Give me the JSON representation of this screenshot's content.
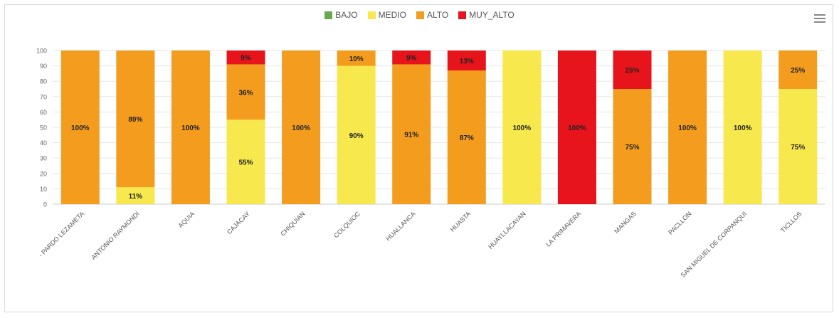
{
  "chart_data": {
    "type": "bar",
    "stacked": true,
    "categories": [
      "- PARDO LEZAMETA",
      "ANTONIO RAYMONDI",
      "AQUIA",
      "CAJACAY",
      "CHIQUIAN",
      "COLQUIOC",
      "HUALLANCA",
      "HUASTA",
      "HUAYLLACAYAN",
      "LA PRIMAVERA",
      "MANGAS",
      "PACLLON",
      "SAN MIGUEL DE CORPANQUI",
      "TICLLOS"
    ],
    "series": [
      {
        "name": "BAJO",
        "color": "#6aa84f",
        "values": [
          0,
          0,
          0,
          0,
          0,
          0,
          0,
          0,
          0,
          0,
          0,
          0,
          0,
          0
        ]
      },
      {
        "name": "MEDIO",
        "color": "#f7e84e",
        "values": [
          0,
          11,
          0,
          55,
          0,
          90,
          0,
          0,
          100,
          0,
          0,
          0,
          100,
          75
        ]
      },
      {
        "name": "ALTO",
        "color": "#f39c1e",
        "values": [
          100,
          89,
          100,
          36,
          100,
          10,
          91,
          87,
          0,
          0,
          75,
          100,
          0,
          25
        ]
      },
      {
        "name": "MUY_ALTO",
        "color": "#e8141b",
        "values": [
          0,
          0,
          0,
          9,
          0,
          0,
          9,
          13,
          0,
          100,
          25,
          0,
          0,
          0
        ]
      }
    ],
    "ylim": [
      0,
      100
    ],
    "yticks": [
      0,
      10,
      20,
      30,
      40,
      50,
      60,
      70,
      80,
      90,
      100
    ],
    "grid": true,
    "legend_position": "top-center",
    "xlabel": "",
    "ylabel": ""
  }
}
